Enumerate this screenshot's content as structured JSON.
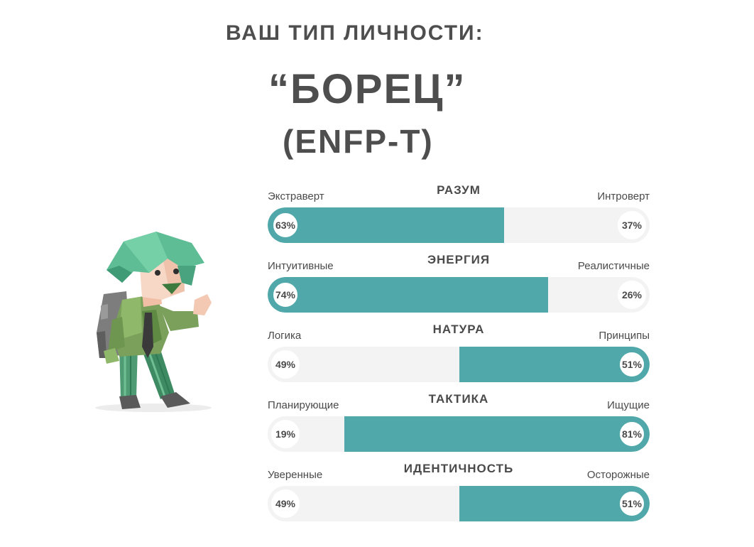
{
  "header": {
    "label": "ВАШ ТИП ЛИЧНОСТИ:",
    "type_name": "“БОРЕЦ”",
    "type_code": "(ENFP-T)"
  },
  "colors": {
    "accent": "#51a8aa",
    "track": "#f3f3f3",
    "text": "#4a4a4a"
  },
  "character": {
    "icon": "campaigner-character-illustration"
  },
  "scales": [
    {
      "name": "РАЗУМ",
      "left_trait": "Экстраверт",
      "right_trait": "Интроверт",
      "left_pct": "63%",
      "right_pct": "37%",
      "left_value": 63,
      "dominant": "left"
    },
    {
      "name": "ЭНЕРГИЯ",
      "left_trait": "Интуитивные",
      "right_trait": "Реалистичные",
      "left_pct": "74%",
      "right_pct": "26%",
      "left_value": 74,
      "dominant": "left"
    },
    {
      "name": "НАТУРА",
      "left_trait": "Логика",
      "right_trait": "Принципы",
      "left_pct": "49%",
      "right_pct": "51%",
      "left_value": 49,
      "dominant": "right"
    },
    {
      "name": "ТАКТИКА",
      "left_trait": "Планирующие",
      "right_trait": "Ищущие",
      "left_pct": "19%",
      "right_pct": "81%",
      "left_value": 19,
      "dominant": "right"
    },
    {
      "name": "ИДЕНТИЧНОСТЬ",
      "left_trait": "Уверенные",
      "right_trait": "Осторожные",
      "left_pct": "49%",
      "right_pct": "51%",
      "left_value": 49,
      "dominant": "right"
    }
  ]
}
